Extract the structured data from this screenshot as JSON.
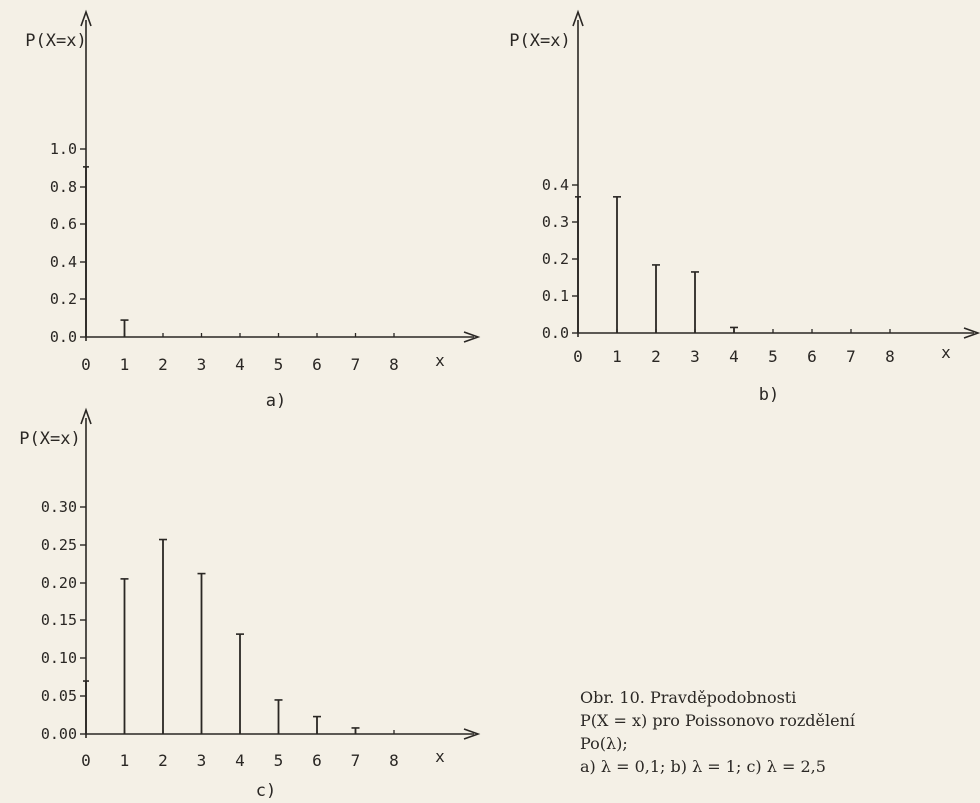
{
  "chart_data": [
    {
      "type": "bar",
      "panel_label": "a)",
      "ylabel": "P(X=x)",
      "xlabel": "x",
      "x_ticks": [
        "0",
        "1",
        "2",
        "3",
        "4",
        "5",
        "6",
        "7",
        "8"
      ],
      "y_ticks": [
        "0.0",
        "0.2",
        "0.4",
        "0.6",
        "0.8",
        "1.0"
      ],
      "ylim": [
        0,
        1.0
      ],
      "x": [
        0,
        1
      ],
      "values": [
        0.905,
        0.09
      ]
    },
    {
      "type": "bar",
      "panel_label": "b)",
      "ylabel": "P(X=x)",
      "xlabel": "x",
      "x_ticks": [
        "0",
        "1",
        "2",
        "3",
        "4",
        "5",
        "6",
        "7",
        "8"
      ],
      "y_ticks": [
        "0.0",
        "0.1",
        "0.2",
        "0.3",
        "0.4"
      ],
      "ylim": [
        0,
        0.4
      ],
      "x": [
        0,
        1,
        2,
        3,
        4
      ],
      "values": [
        0.368,
        0.368,
        0.184,
        0.165,
        0.015
      ]
    },
    {
      "type": "bar",
      "panel_label": "c)",
      "ylabel": "P(X=x)",
      "xlabel": "x",
      "x_ticks": [
        "0",
        "1",
        "2",
        "3",
        "4",
        "5",
        "6",
        "7",
        "8"
      ],
      "y_ticks": [
        "0.00",
        "0.05",
        "0.10",
        "0.15",
        "0.20",
        "0.25",
        "0.30"
      ],
      "ylim": [
        0,
        0.3
      ],
      "x": [
        0,
        1,
        2,
        3,
        4,
        5,
        6,
        7
      ],
      "values": [
        0.07,
        0.205,
        0.257,
        0.212,
        0.132,
        0.045,
        0.023,
        0.008
      ]
    }
  ],
  "caption": {
    "line1": "Obr. 10. Pravděpodobnosti",
    "line2": "P(X = x)  pro Poissonovo rozdělení",
    "line3": "Po(λ);",
    "line4": "a) λ = 0,1;  b) λ = 1;  c) λ = 2,5"
  }
}
